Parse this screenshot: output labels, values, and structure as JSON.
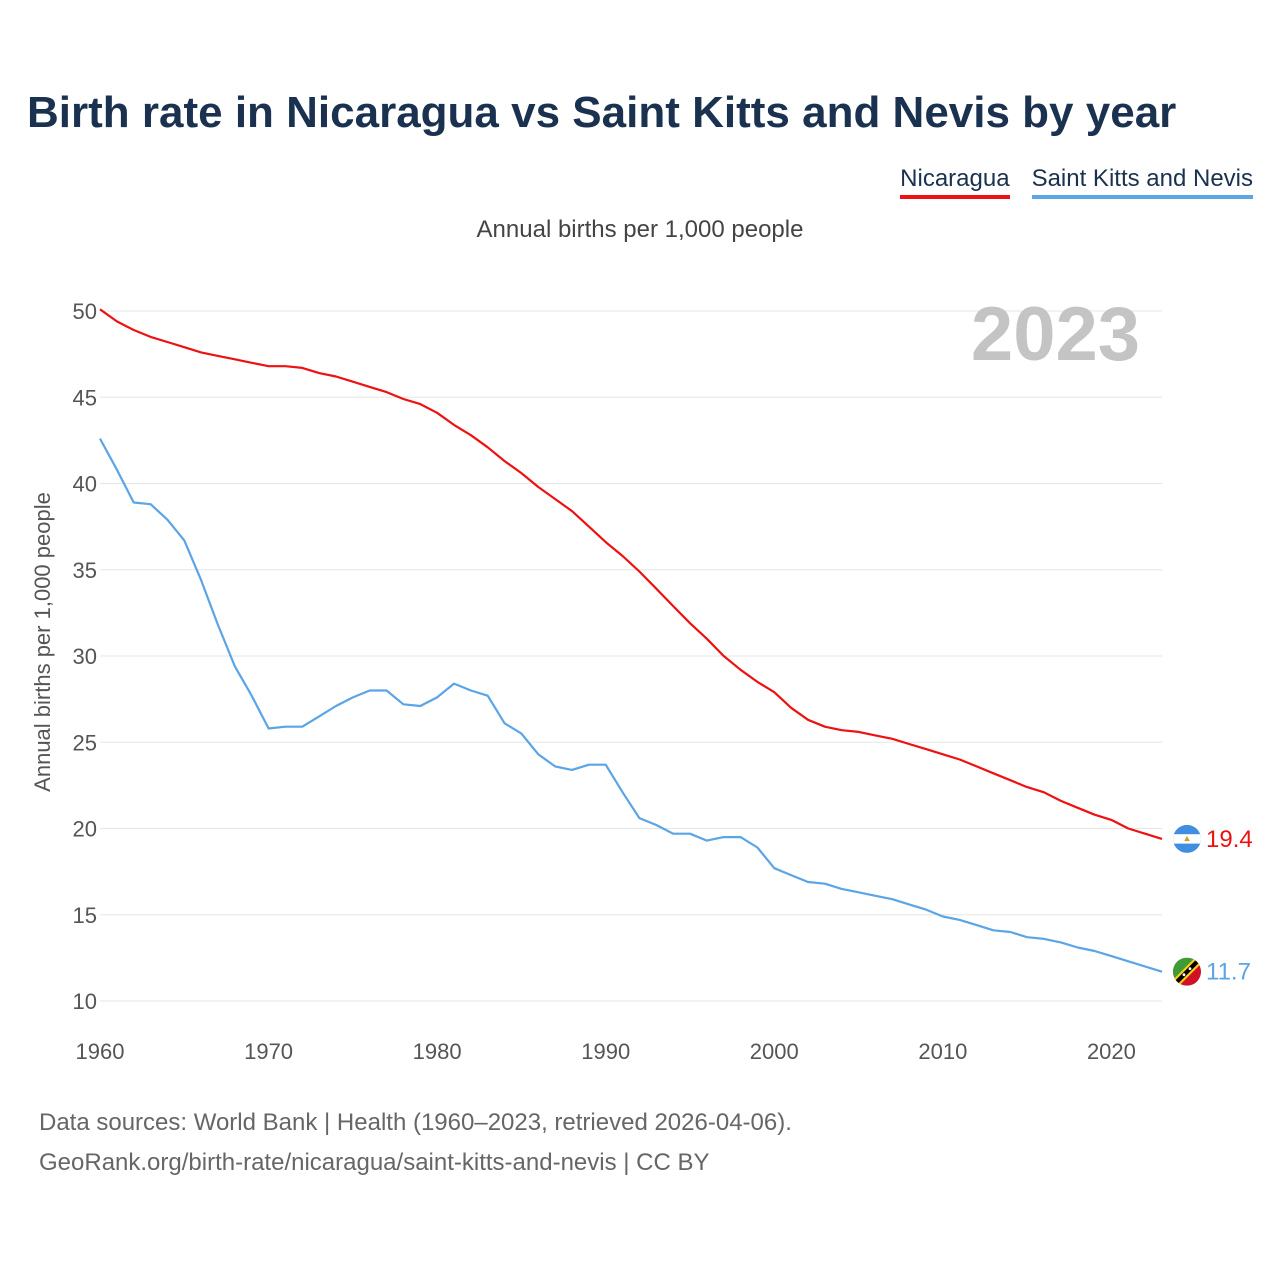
{
  "title": "Birth rate in Nicaragua vs Saint Kitts and Nevis by year",
  "subtitle": "Annual births per 1,000 people",
  "watermark_year": "2023",
  "footer": {
    "line1": "Data sources: World Bank | Health (1960–2023, retrieved 2026-04-06).",
    "line2": "GeoRank.org/birth-rate/nicaragua/saint-kitts-and-nevis | CC BY"
  },
  "colors": {
    "nicaragua": "#ee1111",
    "saint_kitts": "#5ba4e5",
    "grid": "#e6e6e6"
  },
  "legend": [
    {
      "label": "Nicaragua",
      "color": "#ee1111"
    },
    {
      "label": "Saint Kitts and Nevis",
      "color": "#5ba4e5"
    }
  ],
  "chart_data": {
    "type": "line",
    "title": "Birth rate in Nicaragua vs Saint Kitts and Nevis by year",
    "xlabel": "",
    "ylabel": "Annual births per 1,000 people",
    "xlim": [
      1960,
      2023
    ],
    "ylim": [
      10,
      50
    ],
    "x_ticks": [
      1960,
      1970,
      1980,
      1990,
      2000,
      2010,
      2020
    ],
    "y_ticks": [
      10,
      15,
      20,
      25,
      30,
      35,
      40,
      45,
      50
    ],
    "grid": true,
    "x": [
      1960,
      1961,
      1962,
      1963,
      1964,
      1965,
      1966,
      1967,
      1968,
      1969,
      1970,
      1971,
      1972,
      1973,
      1974,
      1975,
      1976,
      1977,
      1978,
      1979,
      1980,
      1981,
      1982,
      1983,
      1984,
      1985,
      1986,
      1987,
      1988,
      1989,
      1990,
      1991,
      1992,
      1993,
      1994,
      1995,
      1996,
      1997,
      1998,
      1999,
      2000,
      2001,
      2002,
      2003,
      2004,
      2005,
      2006,
      2007,
      2008,
      2009,
      2010,
      2011,
      2012,
      2013,
      2014,
      2015,
      2016,
      2017,
      2018,
      2019,
      2020,
      2021,
      2022,
      2023
    ],
    "series": [
      {
        "name": "Nicaragua",
        "end_label": "19.4",
        "values": [
          50.1,
          49.4,
          48.9,
          48.5,
          48.2,
          47.9,
          47.6,
          47.4,
          47.2,
          47.0,
          46.8,
          46.8,
          46.7,
          46.4,
          46.2,
          45.9,
          45.6,
          45.3,
          44.9,
          44.6,
          44.1,
          43.4,
          42.8,
          42.1,
          41.3,
          40.6,
          39.8,
          39.1,
          38.4,
          37.5,
          36.6,
          35.8,
          34.9,
          33.9,
          32.9,
          31.9,
          31.0,
          30.0,
          29.2,
          28.5,
          27.9,
          27.0,
          26.3,
          25.9,
          25.7,
          25.6,
          25.4,
          25.2,
          24.9,
          24.6,
          24.3,
          24.0,
          23.6,
          23.2,
          22.8,
          22.4,
          22.1,
          21.6,
          21.2,
          20.8,
          20.5,
          20.0,
          19.7,
          19.4
        ]
      },
      {
        "name": "Saint Kitts and Nevis",
        "end_label": "11.7",
        "values": [
          42.6,
          40.8,
          38.9,
          38.8,
          37.9,
          36.7,
          34.4,
          31.8,
          29.4,
          27.7,
          25.8,
          25.9,
          25.9,
          26.5,
          27.1,
          27.6,
          28.0,
          28.0,
          27.2,
          27.1,
          27.6,
          28.4,
          28.0,
          27.7,
          26.1,
          25.5,
          24.3,
          23.6,
          23.4,
          23.7,
          23.7,
          22.1,
          20.6,
          20.2,
          19.7,
          19.7,
          19.3,
          19.5,
          19.5,
          18.9,
          17.7,
          17.3,
          16.9,
          16.8,
          16.5,
          16.3,
          16.1,
          15.9,
          15.6,
          15.3,
          14.9,
          14.7,
          14.4,
          14.1,
          14.0,
          13.7,
          13.6,
          13.4,
          13.1,
          12.9,
          12.6,
          12.3,
          12.0,
          11.7
        ]
      }
    ]
  }
}
